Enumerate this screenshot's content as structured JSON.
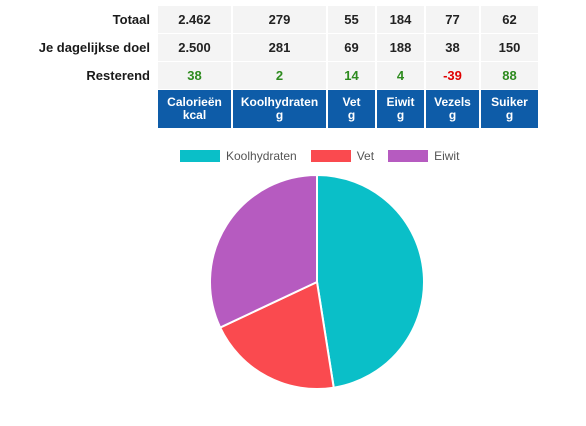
{
  "rows": [
    {
      "label": "Totaal",
      "values": [
        "2.462",
        "279",
        "55",
        "184",
        "77",
        "62"
      ]
    },
    {
      "label": "Je dagelijkse doel",
      "values": [
        "2.500",
        "281",
        "69",
        "188",
        "38",
        "150"
      ]
    },
    {
      "label": "Resterend",
      "values": [
        "38",
        "2",
        "14",
        "4",
        "-39",
        "88"
      ]
    }
  ],
  "columns": [
    {
      "name": "Calorieën",
      "unit": "kcal"
    },
    {
      "name": "Koolhydraten",
      "unit": "g"
    },
    {
      "name": "Vet",
      "unit": "g"
    },
    {
      "name": "Eiwit",
      "unit": "g"
    },
    {
      "name": "Vezels",
      "unit": "g"
    },
    {
      "name": "Suiker",
      "unit": "g"
    }
  ],
  "colors": {
    "header_bg": "#0e5ca8",
    "positive": "#2e8b1f",
    "negative": "#e00000",
    "koolhydraten": "#0abfc8",
    "vet": "#fa4a4f",
    "eiwit": "#b65bc0"
  },
  "chart_data": {
    "type": "pie",
    "title": "",
    "legend_position": "top",
    "categories": [
      "Koolhydraten",
      "Vet",
      "Eiwit"
    ],
    "values": [
      47.5,
      20.5,
      32.0
    ],
    "colors": [
      "#0abfc8",
      "#fa4a4f",
      "#b65bc0"
    ]
  }
}
